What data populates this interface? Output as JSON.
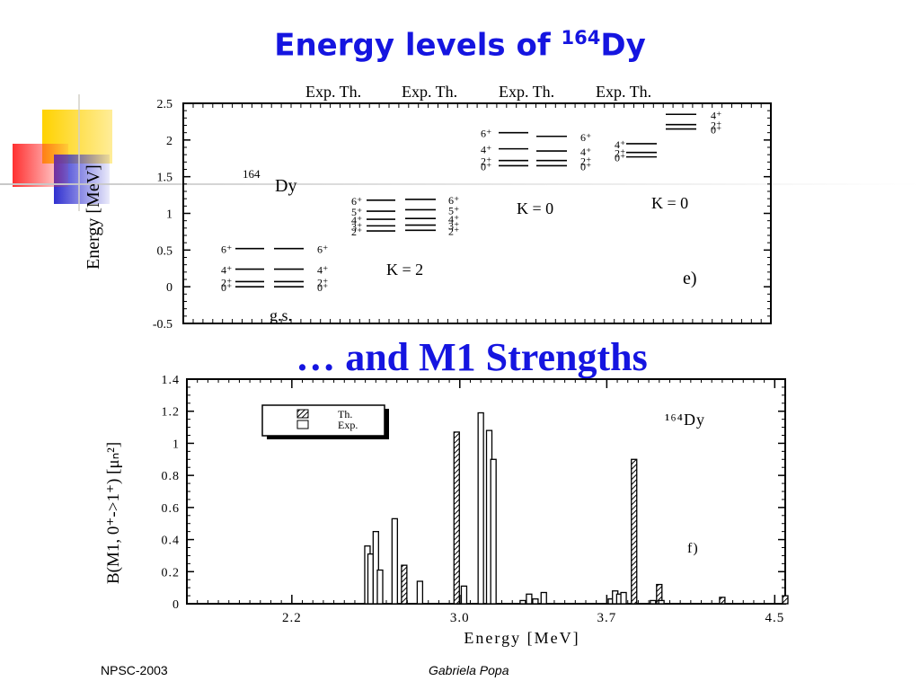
{
  "slide": {
    "title_main": "Energy levels of ",
    "title_mass": "164",
    "title_element": "Dy",
    "subtitle": "… and M1 Strengths",
    "footer_left": "NPSC-2003",
    "footer_center": "Gabriela Popa"
  },
  "levels_plot": {
    "header_labels": [
      "Exp. Th.",
      "Exp. Th.",
      "Exp. Th.",
      "Exp. Th."
    ],
    "ylabel": "Energy [MeV]",
    "ylim": [
      -0.5,
      2.5
    ],
    "yticks": [
      "2.5",
      "2",
      "1.5",
      "1",
      "0.5",
      "0",
      "-0.5"
    ],
    "nucleus_mass": "164",
    "nucleus_symbol": "Dy",
    "panel_label": "e)",
    "bands": [
      {
        "name": "g.s.",
        "exp": [
          0,
          0.07,
          0.24,
          0.52
        ],
        "th": [
          0,
          0.07,
          0.24,
          0.52
        ],
        "spins_left": [
          "0⁺",
          "2⁺",
          "4⁺",
          "6⁺"
        ],
        "spins_right": [
          "0⁺",
          "2⁺",
          "4⁺",
          "6⁺"
        ]
      },
      {
        "name": "K = 2",
        "exp": [
          0.76,
          0.83,
          0.92,
          1.03,
          1.18
        ],
        "th": [
          0.77,
          0.84,
          0.93,
          1.05,
          1.19
        ],
        "spins_left": [
          "2⁺",
          "3⁺",
          "4⁺",
          "5⁺",
          "6⁺"
        ],
        "spins_right": [
          "2⁺",
          "3⁺",
          "4⁺",
          "5⁺",
          "6⁺"
        ]
      },
      {
        "name": "K = 0",
        "exp": [
          1.65,
          1.72,
          1.88,
          2.1
        ],
        "th": [
          1.65,
          1.72,
          1.85,
          2.05
        ],
        "spins_left": [
          "0⁺",
          "2⁺",
          "4⁺",
          "6⁺"
        ],
        "spins_right": [
          "0⁺",
          "2⁺",
          "4⁺",
          "6⁺"
        ]
      },
      {
        "name": "K = 0",
        "exp": [
          1.77,
          1.83,
          1.95
        ],
        "th": [
          2.15,
          2.21,
          2.35
        ],
        "spins_left": [
          "0⁺",
          "2⁺",
          "4⁺"
        ],
        "spins_right": [
          "0⁺",
          "2⁺",
          "4⁺"
        ]
      }
    ]
  },
  "chart_data": {
    "type": "bar",
    "title": "",
    "xlabel": "Energy [MeV]",
    "ylabel": "B(M1, 0⁺->1⁺)  [μₙ²]",
    "xlim": [
      1.7,
      4.55
    ],
    "ylim": [
      0,
      1.4
    ],
    "xticks": [
      "2.2",
      "3.0",
      "3.7",
      "4.5"
    ],
    "yticks": [
      "0",
      "0.2",
      "0.4",
      "0.6",
      "0.8",
      "1",
      "1.2",
      "1.4"
    ],
    "legend": [
      "Th.",
      "Exp."
    ],
    "legend_position": "top-left",
    "nucleus_label": "¹⁶⁴Dy",
    "panel_label": "f)",
    "series": [
      {
        "name": "Th.",
        "x": [
          2.735,
          2.985,
          3.83,
          3.95,
          4.25,
          4.55
        ],
        "values": [
          0.24,
          1.07,
          0.9,
          0.12,
          0.04,
          0.05
        ]
      },
      {
        "name": "Exp.",
        "x": [
          2.56,
          2.575,
          2.6,
          2.62,
          2.69,
          2.81,
          3.02,
          3.1,
          3.14,
          3.16,
          3.3,
          3.33,
          3.36,
          3.4,
          3.72,
          3.74,
          3.76,
          3.78,
          3.92,
          3.96
        ],
        "values": [
          0.36,
          0.31,
          0.45,
          0.21,
          0.53,
          0.14,
          0.11,
          1.19,
          1.08,
          0.9,
          0.02,
          0.06,
          0.03,
          0.07,
          0.03,
          0.08,
          0.06,
          0.07,
          0.02,
          0.02
        ]
      }
    ]
  }
}
